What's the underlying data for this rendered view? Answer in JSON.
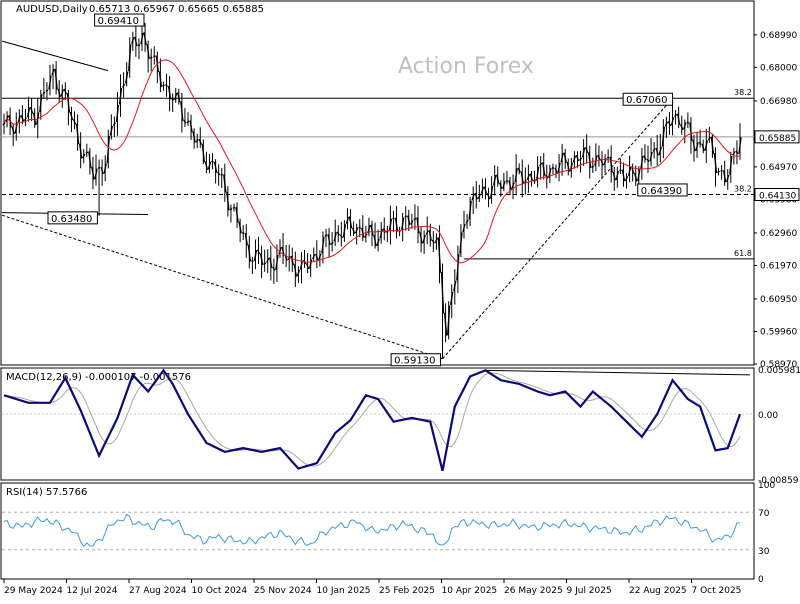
{
  "header": {
    "symbol": "AUDUSD,Daily",
    "ohlc": "0.65713 0.65967 0.65665 0.65885"
  },
  "watermark": "Action Forex",
  "colors": {
    "candle": "#000000",
    "ma": "#e01818",
    "macd": "#0a0a78",
    "signal": "#a8a8a8",
    "rsi": "#3c9be0",
    "frame": "#000000"
  },
  "chart_data": [
    {
      "type": "candlestick",
      "name": "price",
      "ylim": [
        0.5897,
        0.6999
      ],
      "y_ticks": [
        "0.68990",
        "0.68000",
        "0.66980",
        "0.65885",
        "0.64970",
        "0.64130",
        "0.63980",
        "0.62960",
        "0.61970",
        "0.60950",
        "0.59960",
        "0.58970"
      ],
      "x_tick_labels": [
        "29 May 2024",
        "12 Jul 2024",
        "27 Aug 2024",
        "10 Oct 2024",
        "25 Nov 2024",
        "10 Jan 2025",
        "25 Feb 2025",
        "10 Apr 2025",
        "26 May 2025",
        "9 Jul 2025",
        "22 Aug 2025",
        "7 Oct 2025"
      ],
      "price_box": "0.65885",
      "line_box": "0.64130",
      "labels": [
        {
          "text": "0.69410",
          "price": 0.6941
        },
        {
          "text": "0.63480",
          "price": 0.6348
        },
        {
          "text": "0.59130",
          "price": 0.5913
        },
        {
          "text": "0.67060",
          "price": 0.6706
        },
        {
          "text": "0.64390",
          "price": 0.6439
        }
      ],
      "fib_levels": [
        {
          "text": "38.2",
          "price": 0.6706
        },
        {
          "text": "38.2",
          "price": 0.6413
        },
        {
          "text": "61.8",
          "price": 0.6217
        }
      ],
      "anchors": [
        {
          "i": 0,
          "p": 0.662
        },
        {
          "i": 10,
          "p": 0.666
        },
        {
          "i": 16,
          "p": 0.678
        },
        {
          "i": 20,
          "p": 0.67
        },
        {
          "i": 24,
          "p": 0.658
        },
        {
          "i": 29,
          "p": 0.647
        },
        {
          "i": 33,
          "p": 0.652
        },
        {
          "i": 37,
          "p": 0.669
        },
        {
          "i": 41,
          "p": 0.685
        },
        {
          "i": 45,
          "p": 0.69
        },
        {
          "i": 49,
          "p": 0.68
        },
        {
          "i": 54,
          "p": 0.672
        },
        {
          "i": 59,
          "p": 0.665
        },
        {
          "i": 64,
          "p": 0.654
        },
        {
          "i": 69,
          "p": 0.649
        },
        {
          "i": 74,
          "p": 0.638
        },
        {
          "i": 79,
          "p": 0.625
        },
        {
          "i": 85,
          "p": 0.62
        },
        {
          "i": 91,
          "p": 0.623
        },
        {
          "i": 97,
          "p": 0.618
        },
        {
          "i": 103,
          "p": 0.625
        },
        {
          "i": 109,
          "p": 0.63
        },
        {
          "i": 114,
          "p": 0.632
        },
        {
          "i": 120,
          "p": 0.628
        },
        {
          "i": 125,
          "p": 0.631
        },
        {
          "i": 131,
          "p": 0.634
        },
        {
          "i": 136,
          "p": 0.63
        },
        {
          "i": 141,
          "p": 0.626
        },
        {
          "i": 144,
          "p": 0.6
        },
        {
          "i": 147,
          "p": 0.616
        },
        {
          "i": 150,
          "p": 0.635
        },
        {
          "i": 155,
          "p": 0.642
        },
        {
          "i": 160,
          "p": 0.644
        },
        {
          "i": 166,
          "p": 0.646
        },
        {
          "i": 172,
          "p": 0.647
        },
        {
          "i": 178,
          "p": 0.649
        },
        {
          "i": 183,
          "p": 0.651
        },
        {
          "i": 188,
          "p": 0.653
        },
        {
          "i": 193,
          "p": 0.652
        },
        {
          "i": 198,
          "p": 0.65
        },
        {
          "i": 202,
          "p": 0.646
        },
        {
          "i": 206,
          "p": 0.649
        },
        {
          "i": 211,
          "p": 0.653
        },
        {
          "i": 214,
          "p": 0.658
        },
        {
          "i": 218,
          "p": 0.665
        },
        {
          "i": 221,
          "p": 0.664
        },
        {
          "i": 225,
          "p": 0.656
        },
        {
          "i": 229,
          "p": 0.658
        },
        {
          "i": 232,
          "p": 0.65
        },
        {
          "i": 235,
          "p": 0.647
        },
        {
          "i": 238,
          "p": 0.652
        },
        {
          "i": 240,
          "p": 0.659
        }
      ]
    },
    {
      "type": "line",
      "name": "MACD(12,26,9) -0.000107 -0.001576",
      "ylim": [
        -0.00859,
        0.00598
      ],
      "y_ticks": [
        "0.005981",
        "0.00",
        "-0.00859"
      ],
      "anchors": [
        {
          "i": 0,
          "v": 0.0025
        },
        {
          "i": 8,
          "v": 0.0015
        },
        {
          "i": 15,
          "v": 0.0015
        },
        {
          "i": 20,
          "v": 0.0048
        },
        {
          "i": 25,
          "v": 0.0005
        },
        {
          "i": 31,
          "v": -0.0055
        },
        {
          "i": 37,
          "v": -0.0005
        },
        {
          "i": 42,
          "v": 0.0052
        },
        {
          "i": 47,
          "v": 0.003
        },
        {
          "i": 52,
          "v": 0.0058
        },
        {
          "i": 55,
          "v": 0.004
        },
        {
          "i": 60,
          "v": 0.0
        },
        {
          "i": 66,
          "v": -0.0038
        },
        {
          "i": 72,
          "v": -0.005
        },
        {
          "i": 78,
          "v": -0.0045
        },
        {
          "i": 84,
          "v": -0.005
        },
        {
          "i": 90,
          "v": -0.0045
        },
        {
          "i": 96,
          "v": -0.0072
        },
        {
          "i": 102,
          "v": -0.0065
        },
        {
          "i": 108,
          "v": -0.0025
        },
        {
          "i": 113,
          "v": -0.0008
        },
        {
          "i": 118,
          "v": 0.0025
        },
        {
          "i": 122,
          "v": 0.002
        },
        {
          "i": 127,
          "v": -0.001
        },
        {
          "i": 133,
          "v": -0.0005
        },
        {
          "i": 139,
          "v": -0.001
        },
        {
          "i": 143,
          "v": -0.0075
        },
        {
          "i": 147,
          "v": 0.001
        },
        {
          "i": 152,
          "v": 0.005
        },
        {
          "i": 157,
          "v": 0.0058
        },
        {
          "i": 162,
          "v": 0.0045
        },
        {
          "i": 168,
          "v": 0.004
        },
        {
          "i": 174,
          "v": 0.003
        },
        {
          "i": 178,
          "v": 0.0025
        },
        {
          "i": 183,
          "v": 0.003
        },
        {
          "i": 188,
          "v": 0.001
        },
        {
          "i": 192,
          "v": 0.003
        },
        {
          "i": 198,
          "v": 0.001
        },
        {
          "i": 203,
          "v": -0.001
        },
        {
          "i": 208,
          "v": -0.003
        },
        {
          "i": 213,
          "v": 0.0
        },
        {
          "i": 218,
          "v": 0.0045
        },
        {
          "i": 223,
          "v": 0.002
        },
        {
          "i": 227,
          "v": 0.001
        },
        {
          "i": 232,
          "v": -0.0048
        },
        {
          "i": 236,
          "v": -0.0045
        },
        {
          "i": 240,
          "v": 0.0
        }
      ]
    },
    {
      "type": "line",
      "name": "RSI(14) 57.5766",
      "ylim": [
        0,
        100
      ],
      "y_ticks": [
        "100",
        "70",
        "30",
        "0"
      ],
      "levels": [
        70,
        30
      ],
      "anchors": [
        {
          "i": 0,
          "v": 58
        },
        {
          "i": 6,
          "v": 55
        },
        {
          "i": 10,
          "v": 60
        },
        {
          "i": 14,
          "v": 62
        },
        {
          "i": 18,
          "v": 56
        },
        {
          "i": 22,
          "v": 50
        },
        {
          "i": 28,
          "v": 32
        },
        {
          "i": 32,
          "v": 44
        },
        {
          "i": 36,
          "v": 60
        },
        {
          "i": 40,
          "v": 64
        },
        {
          "i": 44,
          "v": 58
        },
        {
          "i": 48,
          "v": 54
        },
        {
          "i": 52,
          "v": 62
        },
        {
          "i": 56,
          "v": 60
        },
        {
          "i": 60,
          "v": 46
        },
        {
          "i": 65,
          "v": 40
        },
        {
          "i": 70,
          "v": 44
        },
        {
          "i": 75,
          "v": 40
        },
        {
          "i": 80,
          "v": 38
        },
        {
          "i": 85,
          "v": 44
        },
        {
          "i": 90,
          "v": 48
        },
        {
          "i": 95,
          "v": 40
        },
        {
          "i": 100,
          "v": 36
        },
        {
          "i": 105,
          "v": 50
        },
        {
          "i": 110,
          "v": 56
        },
        {
          "i": 115,
          "v": 60
        },
        {
          "i": 120,
          "v": 50
        },
        {
          "i": 125,
          "v": 52
        },
        {
          "i": 130,
          "v": 58
        },
        {
          "i": 135,
          "v": 52
        },
        {
          "i": 140,
          "v": 46
        },
        {
          "i": 143,
          "v": 30
        },
        {
          "i": 146,
          "v": 52
        },
        {
          "i": 150,
          "v": 60
        },
        {
          "i": 155,
          "v": 58
        },
        {
          "i": 160,
          "v": 56
        },
        {
          "i": 166,
          "v": 58
        },
        {
          "i": 172,
          "v": 54
        },
        {
          "i": 178,
          "v": 56
        },
        {
          "i": 184,
          "v": 58
        },
        {
          "i": 190,
          "v": 54
        },
        {
          "i": 196,
          "v": 52
        },
        {
          "i": 202,
          "v": 48
        },
        {
          "i": 208,
          "v": 52
        },
        {
          "i": 213,
          "v": 60
        },
        {
          "i": 218,
          "v": 64
        },
        {
          "i": 222,
          "v": 58
        },
        {
          "i": 227,
          "v": 52
        },
        {
          "i": 232,
          "v": 40
        },
        {
          "i": 236,
          "v": 44
        },
        {
          "i": 240,
          "v": 58
        }
      ]
    }
  ]
}
